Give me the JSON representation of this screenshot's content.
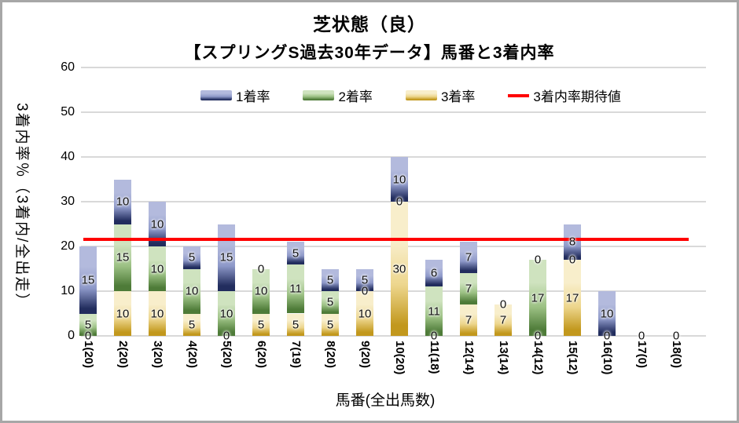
{
  "window": {
    "background": "#ffffff",
    "border_color": "#a7a7a7"
  },
  "chart_data": {
    "type": "bar",
    "stacked": true,
    "title": "芝状態（良）",
    "subtitle": "【スプリングS過去30年データ】馬番と3着内率",
    "xlabel": "馬番(全出馬数)",
    "ylabel": "3着内率％（3着内/全出走）",
    "ylim": [
      0,
      60
    ],
    "yticks": [
      0,
      10,
      20,
      30,
      40,
      50,
      60
    ],
    "grid": true,
    "gridline_color": "#d9d9d9",
    "legend_position": "top",
    "categories": [
      "1(20)",
      "2(20)",
      "3(20)",
      "4(20)",
      "5(20)",
      "6(20)",
      "7(19)",
      "8(20)",
      "9(20)",
      "10(20)",
      "11(18)",
      "12(14)",
      "13(14)",
      "14(12)",
      "15(12)",
      "16(10)",
      "17(0)",
      "18(0)"
    ],
    "series": [
      {
        "name": "3着率",
        "stack_order": "bottom",
        "gradient": [
          "#f8eecb",
          "#edd68d",
          "#c2981d"
        ],
        "values": [
          0,
          10,
          10,
          5,
          0,
          5,
          5,
          5,
          10,
          30,
          0,
          7,
          7,
          0,
          17,
          0,
          0,
          0
        ]
      },
      {
        "name": "2着率",
        "stack_order": "middle",
        "gradient": [
          "#cfe3bf",
          "#9cc184",
          "#4e7b38"
        ],
        "values": [
          5,
          15,
          10,
          10,
          10,
          10,
          11,
          5,
          0,
          0,
          11,
          7,
          0,
          17,
          0,
          0,
          0,
          0
        ]
      },
      {
        "name": "1着率",
        "stack_order": "top",
        "gradient": [
          "#b3badd",
          "#8e99c9",
          "#222d5e"
        ],
        "values": [
          15,
          10,
          10,
          5,
          15,
          0,
          5,
          5,
          5,
          10,
          6,
          7,
          0,
          0,
          8,
          10,
          0,
          0
        ]
      }
    ],
    "totals": [
      20,
      35,
      30,
      20,
      25,
      15,
      21,
      15,
      15,
      40,
      17,
      21,
      7,
      17,
      25,
      10,
      0,
      0
    ],
    "reference_line": {
      "label": "3着内率期待値",
      "value": 21.5,
      "color": "#ff0000"
    }
  }
}
